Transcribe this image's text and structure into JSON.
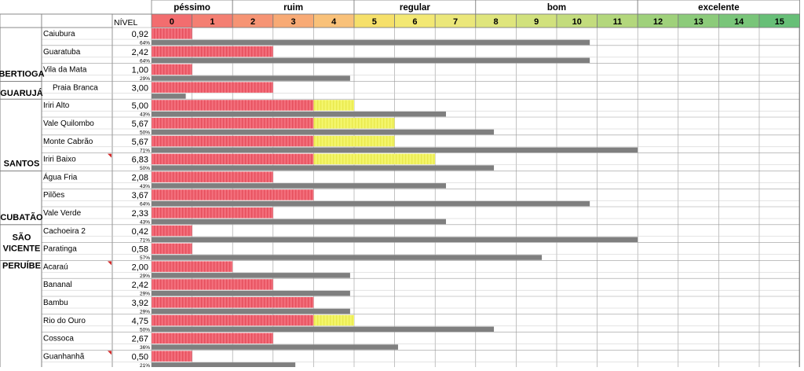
{
  "chart_data": {
    "type": "bar",
    "title": "",
    "nivel_header": "NÍVEL",
    "scale": {
      "ticks": [
        0,
        1,
        2,
        3,
        4,
        5,
        6,
        7,
        8,
        9,
        10,
        11,
        12,
        13,
        14,
        15
      ],
      "categories": [
        {
          "label": "péssimo",
          "from": 0,
          "to": 1,
          "color": "#f4777c"
        },
        {
          "label": "ruim",
          "from": 2,
          "to": 4,
          "color": "#f9a56a"
        },
        {
          "label": "regular",
          "from": 5,
          "to": 7,
          "color": "#f5ed6c"
        },
        {
          "label": "bom",
          "from": 8,
          "to": 11,
          "color": "#cfe07a"
        },
        {
          "label": "excelente",
          "from": 12,
          "to": 15,
          "color": "#7cc97a"
        }
      ],
      "tick_colors": [
        "#f26d6f",
        "#f47f72",
        "#f69474",
        "#f8aa75",
        "#f9c179",
        "#f6e06a",
        "#f3e873",
        "#ebe77a",
        "#dfe57c",
        "#d1e17d",
        "#c3dc7d",
        "#b3d77c",
        "#9fd17b",
        "#8ccb7a",
        "#79c579",
        "#67bf77"
      ]
    },
    "colors": {
      "nivel_red": "#f26d7a",
      "nivel_red_stripe": "#e64e5c",
      "nivel_yellow": "#f3f56a",
      "nivel_yellow_stripe": "#e9e94c",
      "percent_bar": "#7f7f7f"
    },
    "groups": [
      {
        "name": "BERTIOGA",
        "label_lines": [
          "BERTIOGA"
        ]
      },
      {
        "name": "GUARUJÁ",
        "label_lines": [
          "GUARUJÁ"
        ]
      },
      {
        "name": "SANTOS",
        "label_lines": [
          "SANTOS"
        ]
      },
      {
        "name": "CUBATÃO",
        "label_lines": [
          "CUBATÃO"
        ]
      },
      {
        "name": "SÃO VICENTE",
        "label_lines": [
          "SÃO",
          "VICENTE"
        ]
      },
      {
        "name": "PERUÍBE",
        "label_lines": [
          "PERUÍBE"
        ]
      }
    ],
    "rows": [
      {
        "name": "Caiubura",
        "nivel": 0.92,
        "nivel_label": "0,92",
        "percent": 64,
        "percent_label": "64%",
        "comment": false
      },
      {
        "name": "Guaratuba",
        "nivel": 2.42,
        "nivel_label": "2,42",
        "percent": 64,
        "percent_label": "64%",
        "comment": false
      },
      {
        "name": "Vila da Mata",
        "nivel": 1.0,
        "nivel_label": "1,00",
        "percent": 29,
        "percent_label": "29%",
        "comment": false
      },
      {
        "name": "Praia Branca",
        "nivel": 3.0,
        "nivel_label": "3,00",
        "percent": 5,
        "percent_label": "",
        "comment": false
      },
      {
        "name": "Iriri Alto",
        "nivel": 5.0,
        "nivel_label": "5,00",
        "percent": 43,
        "percent_label": "43%",
        "comment": false
      },
      {
        "name": "Vale Quilombo",
        "nivel": 5.67,
        "nivel_label": "5,67",
        "percent": 50,
        "percent_label": "50%",
        "comment": false
      },
      {
        "name": "Monte Cabrão",
        "nivel": 5.67,
        "nivel_label": "5,67",
        "percent": 71,
        "percent_label": "71%",
        "comment": false
      },
      {
        "name": "Iriri Baixo",
        "nivel": 6.83,
        "nivel_label": "6,83",
        "percent": 50,
        "percent_label": "50%",
        "comment": true
      },
      {
        "name": "Água Fria",
        "nivel": 2.08,
        "nivel_label": "2,08",
        "percent": 43,
        "percent_label": "43%",
        "comment": false
      },
      {
        "name": "Pilões",
        "nivel": 3.67,
        "nivel_label": "3,67",
        "percent": 64,
        "percent_label": "64%",
        "comment": false
      },
      {
        "name": "Vale Verde",
        "nivel": 2.33,
        "nivel_label": "2,33",
        "percent": 43,
        "percent_label": "43%",
        "comment": false
      },
      {
        "name": "Cachoeira 2",
        "nivel": 0.42,
        "nivel_label": "0,42",
        "percent": 71,
        "percent_label": "71%",
        "comment": false
      },
      {
        "name": "Paratinga",
        "nivel": 0.58,
        "nivel_label": "0,58",
        "percent": 57,
        "percent_label": "57%",
        "comment": false
      },
      {
        "name": "Acaraú",
        "nivel": 2.0,
        "nivel_label": "2,00",
        "percent": 29,
        "percent_label": "29%",
        "comment": true
      },
      {
        "name": "Bananal",
        "nivel": 2.42,
        "nivel_label": "2,42",
        "percent": 29,
        "percent_label": "29%",
        "comment": false
      },
      {
        "name": "Bambu",
        "nivel": 3.92,
        "nivel_label": "3,92",
        "percent": 29,
        "percent_label": "29%",
        "comment": false
      },
      {
        "name": "Rio do Ouro",
        "nivel": 4.75,
        "nivel_label": "4,75",
        "percent": 50,
        "percent_label": "50%",
        "comment": false
      },
      {
        "name": "Cossoca",
        "nivel": 2.67,
        "nivel_label": "2,67",
        "percent": 36,
        "percent_label": "36%",
        "comment": false
      },
      {
        "name": "Guanhanhã",
        "nivel": 0.5,
        "nivel_label": "0,50",
        "percent": 21,
        "percent_label": "21%",
        "comment": true
      }
    ]
  }
}
